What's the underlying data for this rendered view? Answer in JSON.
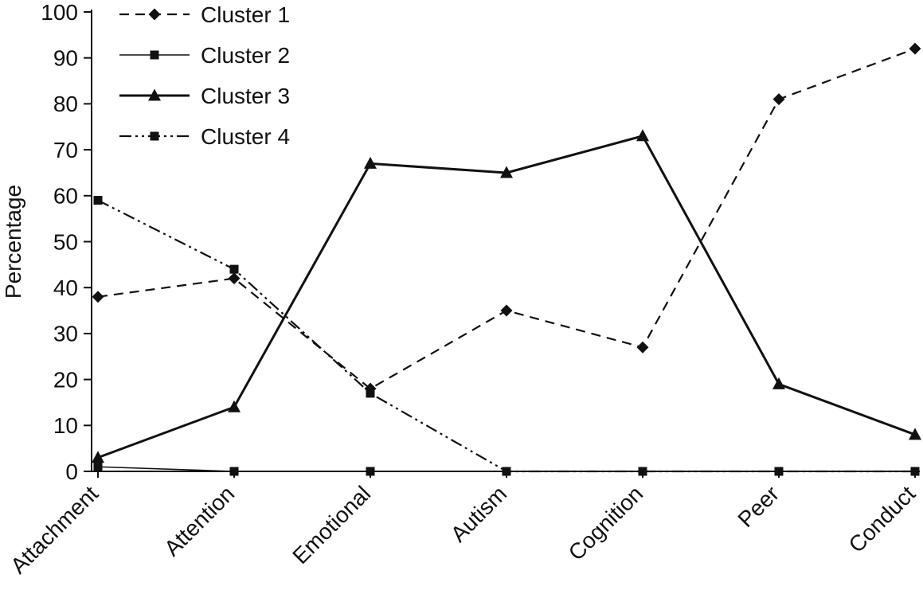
{
  "chart_data": {
    "type": "line",
    "title": "",
    "xlabel": "",
    "ylabel": "Percentage",
    "ylim": [
      0,
      100
    ],
    "ytick_step": 10,
    "grid": false,
    "legend_position": "top-left",
    "ink_color": "#111111",
    "background_color": "#ffffff",
    "categories": [
      "Attachment",
      "Attention",
      "Emotional",
      "Autism",
      "Cognition",
      "Peer",
      "Conduct"
    ],
    "series": [
      {
        "name": "Cluster 1",
        "values": [
          38,
          42,
          18,
          35,
          27,
          81,
          92
        ],
        "marker": "diamond",
        "line_style": "dashed",
        "line_width": 2.2
      },
      {
        "name": "Cluster 2",
        "values": [
          1,
          0,
          0,
          0,
          0,
          0,
          0
        ],
        "marker": "square",
        "line_style": "solid",
        "line_width": 1.6
      },
      {
        "name": "Cluster 3",
        "values": [
          3,
          14,
          67,
          65,
          73,
          19,
          8
        ],
        "marker": "triangle",
        "line_style": "solid",
        "line_width": 3
      },
      {
        "name": "Cluster 4",
        "values": [
          59,
          44,
          17,
          0,
          0,
          0,
          0
        ],
        "marker": "square",
        "line_style": "dash-dot-dot",
        "line_width": 2.2
      }
    ]
  }
}
